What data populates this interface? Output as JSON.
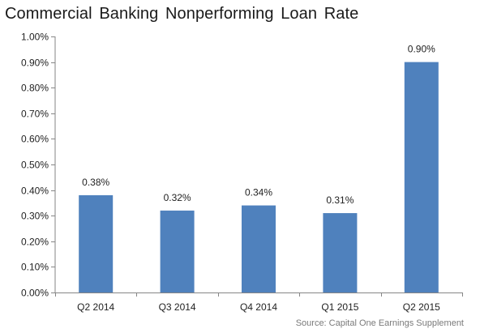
{
  "chart_data": {
    "type": "bar",
    "title": "Commercial Banking Nonperforming Loan Rate",
    "categories": [
      "Q2 2014",
      "Q3 2014",
      "Q4 2014",
      "Q1 2015",
      "Q2 2015"
    ],
    "values": [
      0.38,
      0.32,
      0.34,
      0.31,
      0.9
    ],
    "data_labels": [
      "0.38%",
      "0.32%",
      "0.34%",
      "0.31%",
      "0.90%"
    ],
    "ylim": [
      0,
      1.0
    ],
    "yticks": [
      0,
      0.1,
      0.2,
      0.3,
      0.4,
      0.5,
      0.6,
      0.7,
      0.8,
      0.9,
      1.0
    ],
    "ytick_labels": [
      "0.00%",
      "0.10%",
      "0.20%",
      "0.30%",
      "0.40%",
      "0.50%",
      "0.60%",
      "0.70%",
      "0.80%",
      "0.90%",
      "1.00%"
    ],
    "xlabel": "",
    "ylabel": "",
    "grid": false,
    "legend": "none",
    "bar_color": "#4f81bd",
    "source": "Source: Capital One Earnings Supplement"
  }
}
